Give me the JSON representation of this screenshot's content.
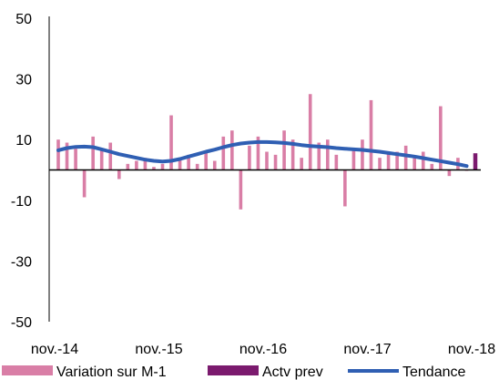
{
  "chart_data": {
    "type": "bar",
    "title": "",
    "xlabel": "",
    "ylabel": "",
    "ylim": [
      -50,
      50
    ],
    "yticks": [
      50,
      30,
      10,
      -10,
      -30,
      -50
    ],
    "x_tick_labels": [
      {
        "label": "nov.-14",
        "index": 0
      },
      {
        "label": "nov.-15",
        "index": 12
      },
      {
        "label": "nov.-16",
        "index": 24
      },
      {
        "label": "nov.-17",
        "index": 36
      },
      {
        "label": "nov.-18",
        "index": 48
      }
    ],
    "n_months": 49,
    "series": [
      {
        "name": "Variation sur M-1",
        "kind": "bar",
        "color": "#d97ea6",
        "values": [
          10,
          9,
          7,
          -9,
          11,
          7,
          9,
          -3,
          2,
          3,
          4,
          1,
          2,
          18,
          4,
          5,
          2,
          6,
          3,
          11,
          13,
          -13,
          8,
          11,
          6,
          5,
          13,
          10,
          4,
          25,
          9,
          10,
          5,
          -12,
          7,
          10,
          23,
          4,
          6,
          6,
          8,
          4,
          6,
          2,
          21,
          -2,
          4,
          0,
          null
        ]
      },
      {
        "name": "Actv prev",
        "kind": "bar",
        "color": "#7b1a6e",
        "values": [
          null,
          null,
          null,
          null,
          null,
          null,
          null,
          null,
          null,
          null,
          null,
          null,
          null,
          null,
          null,
          null,
          null,
          null,
          null,
          null,
          null,
          null,
          null,
          null,
          null,
          null,
          null,
          null,
          null,
          null,
          null,
          null,
          null,
          null,
          null,
          null,
          null,
          null,
          null,
          null,
          null,
          null,
          null,
          null,
          null,
          null,
          null,
          null,
          5.5
        ]
      },
      {
        "name": "Tendance",
        "kind": "line",
        "color": "#2f5fb3",
        "values": [
          6.5,
          7.2,
          7.6,
          7.7,
          7.5,
          6.8,
          6.0,
          5.2,
          4.6,
          4.0,
          3.4,
          3.0,
          2.8,
          3.0,
          3.6,
          4.4,
          5.2,
          6.0,
          6.7,
          7.5,
          8.2,
          8.7,
          9.0,
          9.2,
          9.2,
          9.1,
          8.9,
          8.6,
          8.2,
          7.9,
          7.7,
          7.5,
          7.2,
          7.0,
          6.8,
          6.6,
          6.3,
          6.0,
          5.6,
          5.2,
          4.8,
          4.4,
          3.9,
          3.4,
          2.9,
          2.4,
          1.9,
          1.3,
          null
        ]
      }
    ],
    "legend": "bottom",
    "grid": false
  }
}
